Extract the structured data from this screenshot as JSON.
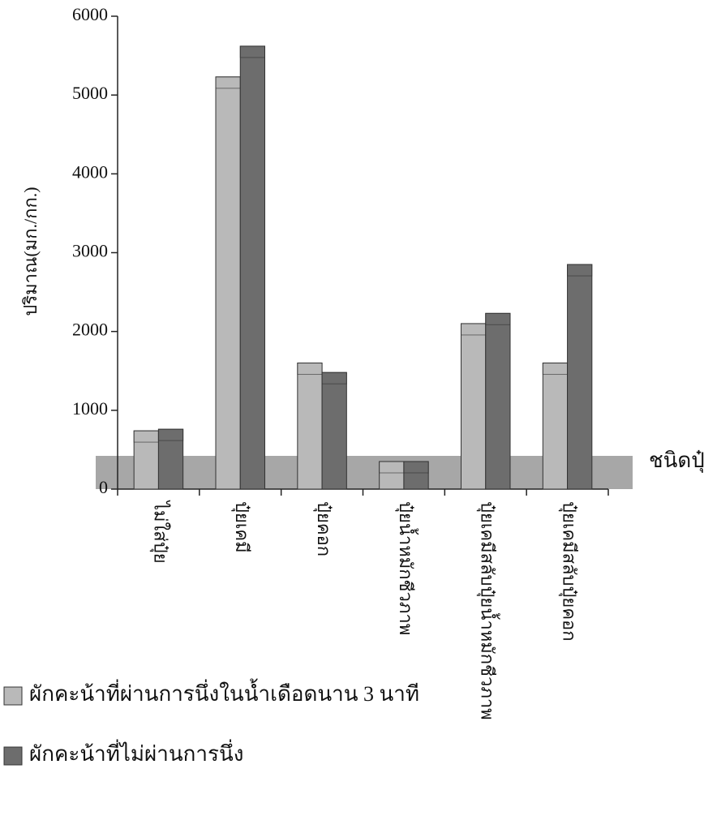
{
  "chart_data": {
    "type": "bar",
    "y_label": "ปริมาณ(มก./กก.)",
    "x_label": "ชนิดปุ๋ย",
    "categories": [
      "ไม่ใส่ปุ๋ย",
      "ปุ๋ยเคมี",
      "ปุ๋ยคอก",
      "ปุ๋ยน้ำหมักชีวภาพ",
      "ปุ๋ยเคมีสลับปุ๋ยน้ำหมักชีวภาพ",
      "ปุ๋ยเคมีสลับปุ๋ยคอก"
    ],
    "series": [
      {
        "name": "ผักคะน้าที่ผ่านการนึ่งในน้ำเดือดนาน 3 นาที",
        "color": "#b9b9b9",
        "values": [
          740,
          5230,
          1600,
          350,
          2100,
          1600
        ]
      },
      {
        "name": "ผักคะน้าที่ไม่ผ่านการนึ่ง",
        "color": "#6d6d6d",
        "values": [
          760,
          5620,
          1480,
          350,
          2230,
          2850
        ]
      }
    ],
    "ylim": [
      0,
      6000
    ],
    "yticks": [
      0,
      1000,
      2000,
      3000,
      4000,
      5000,
      6000
    ]
  }
}
